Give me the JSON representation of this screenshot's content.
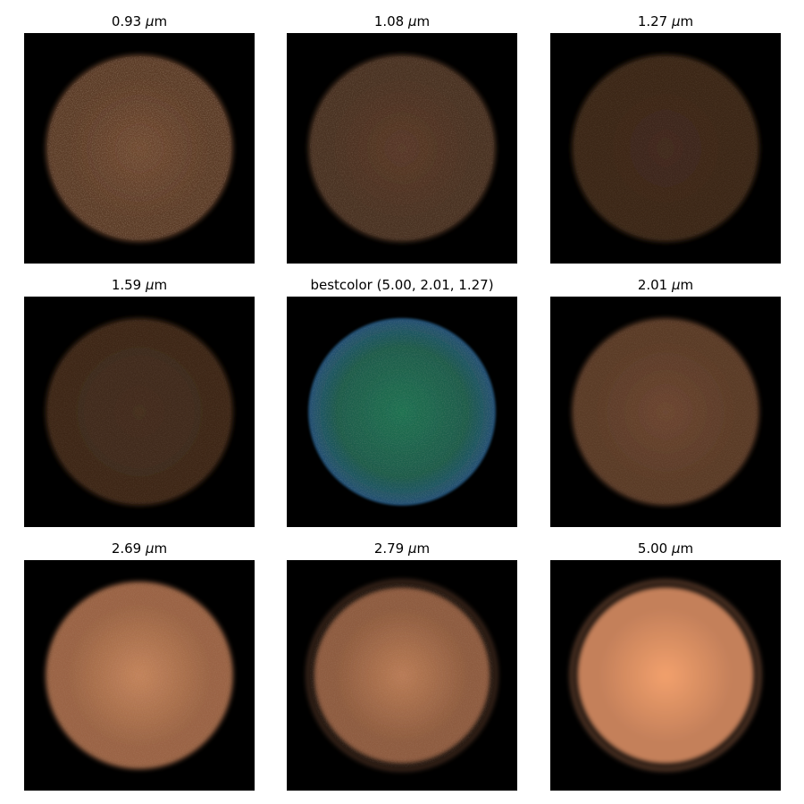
{
  "panels": [
    {
      "id": "p093",
      "label_value": "0.93",
      "unit_prefix": "μ",
      "unit_suffix": "m",
      "color": "#5a3a26",
      "glow": "#6e4830",
      "limb": "soft",
      "noise": "high"
    },
    {
      "id": "p108",
      "label_value": "1.08",
      "unit_prefix": "μ",
      "unit_suffix": "m",
      "color": "#4a3020",
      "glow": "#563726",
      "limb": "soft",
      "noise": "medium"
    },
    {
      "id": "p127",
      "label_value": "1.27",
      "unit_prefix": "μ",
      "unit_suffix": "m",
      "color": "#3a2518",
      "glow": "#40291b",
      "limb": "soft",
      "noise": "low"
    },
    {
      "id": "p159",
      "label_value": "1.59",
      "unit_prefix": "μ",
      "unit_suffix": "m",
      "color": "#3d2819",
      "glow": "#442d1d",
      "limb": "soft",
      "noise": "low"
    },
    {
      "id": "pbest",
      "label_text": "bestcolor (5.00, 2.01, 1.27)",
      "color": "#1b5a4a",
      "glow": "#1e7050",
      "edge": "#234f74",
      "limb": "sharp",
      "noise": "medium"
    },
    {
      "id": "p201",
      "label_value": "2.01",
      "unit_prefix": "μ",
      "unit_suffix": "m",
      "color": "#5a3a27",
      "glow": "#6b4530",
      "limb": "soft",
      "noise": "low"
    },
    {
      "id": "p269",
      "label_value": "2.69",
      "unit_prefix": "μ",
      "unit_suffix": "m",
      "color": "#9a6444",
      "glow": "#c3835b",
      "limb": "soft",
      "noise": "low"
    },
    {
      "id": "p279",
      "label_value": "2.79",
      "unit_prefix": "μ",
      "unit_suffix": "m",
      "color": "#8e5c3f",
      "glow": "#b97b55",
      "limb": "ring",
      "noise": "low"
    },
    {
      "id": "p500",
      "label_value": "5.00",
      "unit_prefix": "μ",
      "unit_suffix": "m",
      "color": "#c4805a",
      "glow": "#f2a06c",
      "limb": "ring",
      "noise": "none"
    }
  ]
}
